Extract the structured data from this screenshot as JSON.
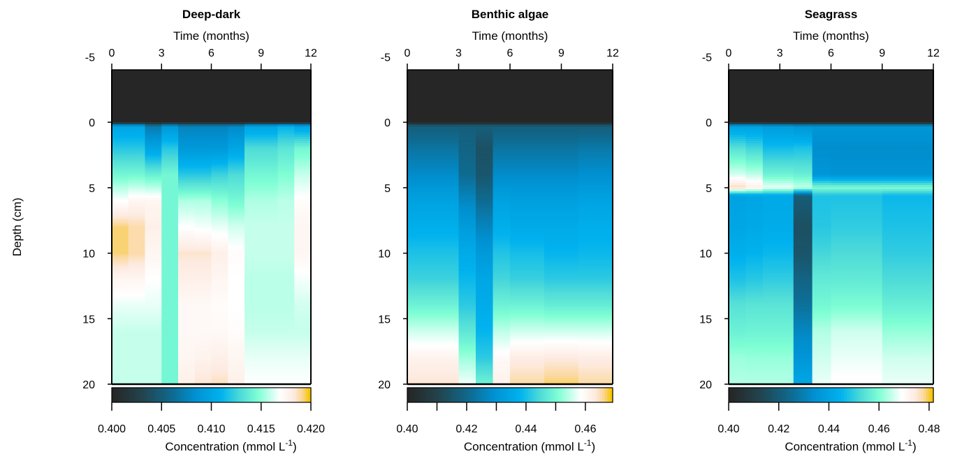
{
  "ylabel": "Depth (cm)",
  "colormap": [
    [
      0,
      "#262626"
    ],
    [
      0.15,
      "#22444e"
    ],
    [
      0.3,
      "#0f6a8f"
    ],
    [
      0.42,
      "#0091d2"
    ],
    [
      0.55,
      "#00b2ee"
    ],
    [
      0.65,
      "#4fdcd8"
    ],
    [
      0.74,
      "#80ffd4"
    ],
    [
      0.85,
      "#ffffff"
    ],
    [
      0.92,
      "#fdeae0"
    ],
    [
      0.96,
      "#fbd79a"
    ],
    [
      1,
      "#f5c400"
    ]
  ],
  "chart_data": [
    {
      "type": "heatmap",
      "title": "Deep-dark",
      "xlabel": "Time (months)",
      "ylabel": "Depth (cm)",
      "xlim": [
        0,
        12
      ],
      "ylim": [
        -4,
        20
      ],
      "xticks": [
        0,
        3,
        6,
        9,
        12
      ],
      "yticks": [
        -5,
        0,
        5,
        10,
        15,
        20
      ],
      "colorbar": {
        "range": [
          0.4,
          0.42
        ],
        "ticks": [
          0.4,
          0.405,
          0.41,
          0.415,
          0.42
        ],
        "tick_labels": [
          "0.400",
          "0.405",
          "0.410",
          "0.415",
          "0.420"
        ],
        "label_main": "Concentration (mmol L",
        "label_sup": "-1",
        "label_end": ")"
      },
      "time_edges": [
        0,
        1,
        2,
        3,
        4,
        5,
        6,
        7,
        8,
        9,
        10,
        11,
        12
      ],
      "depths": [
        0.3,
        2,
        4,
        6,
        8,
        10,
        12,
        14,
        16,
        18,
        20
      ],
      "values": [
        [
          0.41,
          0.412,
          0.4144,
          0.417,
          0.4194,
          0.4194,
          0.4176,
          0.4166,
          0.416,
          0.416,
          0.416
        ],
        [
          0.41,
          0.412,
          0.4144,
          0.4176,
          0.419,
          0.419,
          0.4176,
          0.4166,
          0.416,
          0.416,
          0.416
        ],
        [
          0.407,
          0.41,
          0.414,
          0.4176,
          0.418,
          0.4176,
          0.417,
          0.4166,
          0.416,
          0.416,
          0.416
        ],
        [
          0.409,
          0.412,
          0.4144,
          0.4144,
          0.4144,
          0.4144,
          0.4144,
          0.4144,
          0.4144,
          0.4144,
          0.4144
        ],
        [
          0.4076,
          0.409,
          0.412,
          0.4156,
          0.417,
          0.4186,
          0.418,
          0.4174,
          0.4174,
          0.4176,
          0.418
        ],
        [
          0.4076,
          0.409,
          0.412,
          0.4156,
          0.4168,
          0.4186,
          0.418,
          0.4174,
          0.4174,
          0.4178,
          0.4186
        ],
        [
          0.4076,
          0.409,
          0.4125,
          0.415,
          0.4166,
          0.418,
          0.4176,
          0.4172,
          0.4174,
          0.418,
          0.4188
        ],
        [
          0.408,
          0.41,
          0.413,
          0.4145,
          0.4162,
          0.4172,
          0.417,
          0.417,
          0.4172,
          0.4176,
          0.418
        ],
        [
          0.41,
          0.413,
          0.4144,
          0.4156,
          0.416,
          0.416,
          0.4158,
          0.4158,
          0.416,
          0.4166,
          0.417
        ],
        [
          0.41,
          0.413,
          0.4144,
          0.4156,
          0.416,
          0.416,
          0.4158,
          0.4158,
          0.416,
          0.4166,
          0.417
        ],
        [
          0.411,
          0.4135,
          0.4148,
          0.4158,
          0.416,
          0.416,
          0.4158,
          0.4158,
          0.416,
          0.4166,
          0.417
        ],
        [
          0.41,
          0.4144,
          0.416,
          0.4172,
          0.4176,
          0.4176,
          0.4168,
          0.4162,
          0.416,
          0.4166,
          0.417
        ]
      ]
    },
    {
      "type": "heatmap",
      "title": "Benthic algae",
      "xlabel": "Time (months)",
      "ylabel": "Depth (cm)",
      "xlim": [
        0,
        12
      ],
      "ylim": [
        -4,
        20
      ],
      "xticks": [
        0,
        3,
        6,
        9,
        12
      ],
      "yticks": [
        -5,
        0,
        5,
        10,
        15,
        20
      ],
      "colorbar": {
        "range": [
          0.4,
          0.4692
        ],
        "ticks": [
          0.4,
          0.41,
          0.42,
          0.43,
          0.44,
          0.45,
          0.46
        ],
        "tick_labels": [
          "0.40",
          "",
          "0.42",
          "",
          "0.44",
          "",
          "0.46"
        ],
        "label_main": "Concentration (mmol L",
        "label_sup": "-1",
        "label_end": ")"
      },
      "time_edges": [
        0,
        1,
        2,
        3,
        4,
        5,
        6,
        7,
        8,
        9,
        10,
        11,
        12
      ],
      "depths": [
        0.3,
        2,
        4,
        6,
        8,
        10,
        12,
        14,
        16,
        18,
        20
      ],
      "values": [
        [
          0.4175,
          0.423,
          0.428,
          0.4336,
          0.437,
          0.4406,
          0.4434,
          0.449,
          0.456,
          0.4616,
          0.4644
        ],
        [
          0.4175,
          0.423,
          0.428,
          0.4336,
          0.437,
          0.4406,
          0.4434,
          0.449,
          0.456,
          0.4616,
          0.4644
        ],
        [
          0.4175,
          0.423,
          0.428,
          0.4336,
          0.437,
          0.4406,
          0.4434,
          0.449,
          0.456,
          0.4616,
          0.4644
        ],
        [
          0.4175,
          0.419,
          0.421,
          0.427,
          0.432,
          0.436,
          0.439,
          0.442,
          0.447,
          0.453,
          0.458
        ],
        [
          0.4175,
          0.414,
          0.4154,
          0.421,
          0.4266,
          0.4315,
          0.435,
          0.4364,
          0.4385,
          0.442,
          0.449
        ],
        [
          0.4175,
          0.423,
          0.428,
          0.4336,
          0.437,
          0.441,
          0.444,
          0.449,
          0.455,
          0.46,
          0.462
        ],
        [
          0.4175,
          0.423,
          0.428,
          0.433,
          0.436,
          0.44,
          0.443,
          0.449,
          0.456,
          0.463,
          0.466
        ],
        [
          0.4175,
          0.423,
          0.428,
          0.433,
          0.436,
          0.44,
          0.443,
          0.449,
          0.456,
          0.463,
          0.466
        ],
        [
          0.4175,
          0.423,
          0.428,
          0.433,
          0.436,
          0.4385,
          0.442,
          0.448,
          0.456,
          0.4635,
          0.4675
        ],
        [
          0.4175,
          0.423,
          0.428,
          0.433,
          0.436,
          0.4385,
          0.442,
          0.448,
          0.456,
          0.4635,
          0.4675
        ],
        [
          0.4175,
          0.424,
          0.429,
          0.434,
          0.437,
          0.439,
          0.442,
          0.448,
          0.456,
          0.463,
          0.466
        ],
        [
          0.4175,
          0.424,
          0.429,
          0.434,
          0.437,
          0.439,
          0.442,
          0.448,
          0.456,
          0.463,
          0.466
        ]
      ]
    },
    {
      "type": "heatmap",
      "title": "Seagrass",
      "xlabel": "Time (months)",
      "ylabel": "Depth (cm)",
      "xlim": [
        0,
        12
      ],
      "ylim": [
        -4,
        20
      ],
      "xticks": [
        0,
        3,
        6,
        9,
        12
      ],
      "yticks": [
        -5,
        0,
        5,
        10,
        15,
        20
      ],
      "colorbar": {
        "range": [
          0.4,
          0.4817
        ],
        "ticks": [
          0.4,
          0.42,
          0.44,
          0.46,
          0.48
        ],
        "tick_labels": [
          "0.40",
          "0.42",
          "0.44",
          "0.46",
          "0.48"
        ],
        "label_main": "Concentration (mmol L",
        "label_sup": "-1",
        "label_end": ")"
      },
      "time_edges": [
        0,
        1,
        2,
        3.8,
        4.9,
        6,
        7,
        8,
        9,
        10,
        11,
        12
      ],
      "depths": [
        0.3,
        2,
        4,
        5,
        5.6,
        8,
        10,
        12,
        14,
        16,
        18,
        20
      ],
      "values": [
        [
          0.44,
          0.4544,
          0.4664,
          0.4776,
          0.44,
          0.441,
          0.444,
          0.448,
          0.4544,
          0.4576,
          0.4624,
          0.464
        ],
        [
          0.44,
          0.452,
          0.465,
          0.474,
          0.441,
          0.442,
          0.445,
          0.449,
          0.455,
          0.458,
          0.462,
          0.464
        ],
        [
          0.438,
          0.447,
          0.458,
          0.468,
          0.442,
          0.443,
          0.446,
          0.45,
          0.455,
          0.458,
          0.462,
          0.464
        ],
        [
          0.436,
          0.448,
          0.457,
          0.4656,
          0.42,
          0.416,
          0.4176,
          0.4224,
          0.4264,
          0.432,
          0.436,
          0.4416
        ],
        [
          0.436,
          0.4336,
          0.436,
          0.46,
          0.448,
          0.449,
          0.452,
          0.456,
          0.459,
          0.464,
          0.466,
          0.468
        ],
        [
          0.436,
          0.4336,
          0.435,
          0.46,
          0.448,
          0.45,
          0.453,
          0.456,
          0.46,
          0.466,
          0.468,
          0.47
        ],
        [
          0.436,
          0.4336,
          0.435,
          0.46,
          0.448,
          0.45,
          0.453,
          0.456,
          0.46,
          0.466,
          0.468,
          0.47
        ],
        [
          0.436,
          0.4336,
          0.435,
          0.46,
          0.448,
          0.45,
          0.453,
          0.456,
          0.46,
          0.466,
          0.468,
          0.47
        ],
        [
          0.436,
          0.4336,
          0.435,
          0.46,
          0.446,
          0.448,
          0.45,
          0.453,
          0.457,
          0.462,
          0.466,
          0.468
        ],
        [
          0.436,
          0.4336,
          0.435,
          0.46,
          0.446,
          0.448,
          0.45,
          0.453,
          0.457,
          0.462,
          0.466,
          0.468
        ],
        [
          0.436,
          0.4336,
          0.435,
          0.46,
          0.446,
          0.448,
          0.45,
          0.453,
          0.457,
          0.462,
          0.466,
          0.468
        ]
      ]
    }
  ]
}
